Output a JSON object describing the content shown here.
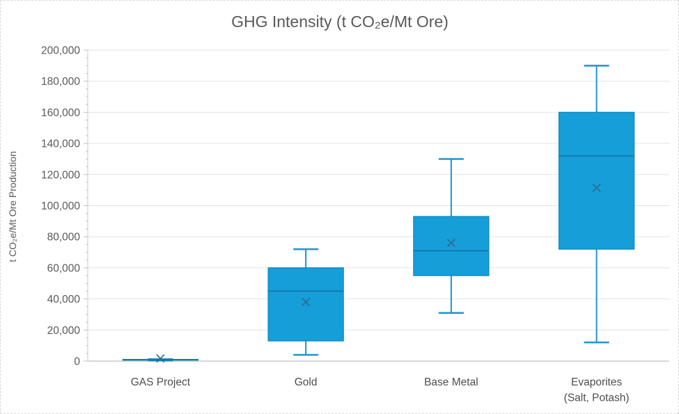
{
  "chart_data": {
    "type": "box",
    "title": "GHG Intensity (t CO₂e/Mt Ore)",
    "ylabel": "t CO₂e/Mt Ore Production",
    "ylim": [
      0,
      200000
    ],
    "ytick_step": 20000,
    "yminor_step": 5000,
    "grid": true,
    "legend_position": "none",
    "categories": [
      "GAS Project",
      "Gold",
      "Base Metal",
      "Evaporites (Salt, Potash)"
    ],
    "boxes": [
      {
        "category": "GAS Project",
        "label_lines": [
          "GAS Project"
        ],
        "min": 400,
        "q1": 600,
        "median": 800,
        "q3": 1100,
        "max": 1300,
        "mean": 1700
      },
      {
        "category": "Gold",
        "label_lines": [
          "Gold"
        ],
        "min": 4000,
        "q1": 13000,
        "median": 45000,
        "q3": 60000,
        "max": 72000,
        "mean": 38000
      },
      {
        "category": "Base Metal",
        "label_lines": [
          "Base Metal"
        ],
        "min": 31000,
        "q1": 55000,
        "median": 71000,
        "q3": 93000,
        "max": 130000,
        "mean": 76000
      },
      {
        "category": "Evaporites (Salt, Potash)",
        "label_lines": [
          "Evaporites",
          "(Salt, Potash)"
        ],
        "min": 12000,
        "q1": 72000,
        "median": 132000,
        "q3": 160000,
        "max": 190000,
        "mean": 111500
      }
    ],
    "colors": {
      "box_fill": "#169ED9",
      "box_stroke": "#1186BC",
      "whisker": "#1E95CB",
      "median": "#10729F",
      "mean_marker": "#2B6E8F",
      "gridline": "#E2E2E2",
      "axis_line": "#C9C9C9",
      "tick": "#BFBFBF",
      "text": "#595959",
      "category_text": "#4D4D4D"
    }
  }
}
